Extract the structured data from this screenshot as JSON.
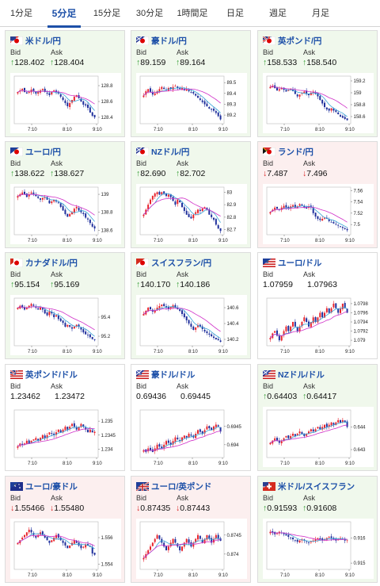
{
  "tabs": [
    {
      "label": "1分足",
      "active": false
    },
    {
      "label": "5分足",
      "active": true
    },
    {
      "label": "15分足",
      "active": false
    },
    {
      "label": "30分足",
      "active": false
    },
    {
      "label": "1時間足",
      "active": false
    },
    {
      "label": "日足",
      "active": false
    },
    {
      "label": "週足",
      "active": false
    },
    {
      "label": "月足",
      "active": false
    }
  ],
  "colors": {
    "accent": "#1d50a8",
    "up_bg": "#f0f8ec",
    "down_bg": "#fcefef",
    "up_arrow": "#2c9a2c",
    "down_arrow": "#d92020",
    "candle_up": "#e8242c",
    "candle_down": "#1f2f9c",
    "ma_short": "#36a3d6",
    "ma_long": "#d030c8"
  },
  "labels": {
    "bid": "Bid",
    "ask": "Ask"
  },
  "x_ticks": [
    "7:10",
    "8:10",
    "9:10"
  ],
  "cards": [
    {
      "pair": "米ドル/円",
      "flag": "us-jp",
      "trend": "up",
      "bid": "128.402",
      "ask": "128.404",
      "chart_data": {
        "type": "candlestick",
        "y_ticks": [
          "128.8",
          "128.6",
          "128.4"
        ],
        "ylim": [
          128.32,
          128.92
        ],
        "shape": [
          128.72,
          128.74,
          128.76,
          128.72,
          128.7,
          128.72,
          128.75,
          128.73,
          128.7,
          128.72,
          128.74,
          128.76,
          128.72,
          128.7,
          128.68,
          128.72,
          128.74,
          128.72,
          128.7,
          128.66,
          128.62,
          128.58,
          128.54,
          128.58,
          128.62,
          128.66,
          128.68,
          128.64,
          128.6,
          128.56,
          128.55,
          128.52,
          128.46,
          128.42,
          128.4
        ]
      }
    },
    {
      "pair": "豪ドル/円",
      "flag": "au-jp",
      "trend": "up",
      "bid": "89.159",
      "ask": "89.164",
      "chart_data": {
        "type": "candlestick",
        "y_ticks": [
          "89.5",
          "89.4",
          "89.3",
          "89.2"
        ],
        "ylim": [
          89.12,
          89.56
        ],
        "shape": [
          89.38,
          89.42,
          89.44,
          89.41,
          89.39,
          89.4,
          89.42,
          89.44,
          89.46,
          89.44,
          89.43,
          89.45,
          89.44,
          89.46,
          89.47,
          89.45,
          89.44,
          89.45,
          89.43,
          89.44,
          89.42,
          89.41,
          89.4,
          89.38,
          89.36,
          89.34,
          89.32,
          89.3,
          89.28,
          89.26,
          89.25,
          89.24,
          89.22,
          89.19,
          89.16
        ]
      }
    },
    {
      "pair": "英ポンド/円",
      "flag": "gb-jp",
      "trend": "up",
      "bid": "158.533",
      "ask": "158.540",
      "chart_data": {
        "type": "candlestick",
        "y_ticks": [
          "159.2",
          "159",
          "158.8",
          "158.6"
        ],
        "ylim": [
          158.48,
          159.28
        ],
        "shape": [
          159.1,
          159.12,
          159.08,
          159.04,
          159.06,
          159.08,
          159.05,
          159.02,
          159.04,
          159.06,
          159.03,
          158.98,
          158.94,
          158.97,
          159.0,
          159.02,
          158.99,
          158.96,
          159.0,
          159.02,
          158.98,
          158.94,
          158.88,
          158.82,
          158.76,
          158.72,
          158.7,
          158.74,
          158.7,
          158.68,
          158.64,
          158.6,
          158.58,
          158.56,
          158.54
        ]
      }
    },
    {
      "pair": "ユーロ/円",
      "flag": "eu-jp",
      "trend": "up",
      "bid": "138.622",
      "ask": "138.627",
      "chart_data": {
        "type": "candlestick",
        "y_ticks": [
          "139",
          "138.8",
          "138.6"
        ],
        "ylim": [
          138.55,
          139.08
        ],
        "shape": [
          138.98,
          139.0,
          139.02,
          139.0,
          138.97,
          139.0,
          139.02,
          139.0,
          138.98,
          138.96,
          138.94,
          138.96,
          138.97,
          138.94,
          138.9,
          138.92,
          138.94,
          138.92,
          138.9,
          138.86,
          138.82,
          138.78,
          138.75,
          138.78,
          138.8,
          138.84,
          138.86,
          138.82,
          138.8,
          138.78,
          138.74,
          138.72,
          138.68,
          138.64,
          138.62
        ]
      }
    },
    {
      "pair": "NZドル/円",
      "flag": "nz-jp",
      "trend": "up",
      "bid": "82.690",
      "ask": "82.702",
      "chart_data": {
        "type": "candlestick",
        "y_ticks": [
          "83",
          "82.9",
          "82.8",
          "82.7"
        ],
        "ylim": [
          82.66,
          83.04
        ],
        "shape": [
          82.82,
          82.86,
          82.9,
          82.94,
          82.97,
          82.99,
          83.0,
          82.98,
          83.0,
          82.99,
          82.97,
          82.98,
          82.96,
          82.93,
          82.9,
          82.94,
          82.92,
          82.88,
          82.85,
          82.82,
          82.8,
          82.79,
          82.82,
          82.84,
          82.86,
          82.85,
          82.87,
          82.88,
          82.86,
          82.82,
          82.8,
          82.78,
          82.74,
          82.71,
          82.69
        ]
      }
    },
    {
      "pair": "ランド/円",
      "flag": "za-jp",
      "trend": "down",
      "bid": "7.487",
      "ask": "7.496",
      "chart_data": {
        "type": "candlestick",
        "y_ticks": [
          "7.56",
          "7.54",
          "7.52",
          "7.5"
        ],
        "ylim": [
          7.482,
          7.566
        ],
        "shape": [
          7.522,
          7.526,
          7.53,
          7.528,
          7.526,
          7.53,
          7.533,
          7.53,
          7.528,
          7.532,
          7.534,
          7.53,
          7.532,
          7.536,
          7.534,
          7.53,
          7.528,
          7.532,
          7.53,
          7.52,
          7.514,
          7.51,
          7.508,
          7.51,
          7.512,
          7.51,
          7.506,
          7.504,
          7.502,
          7.5,
          7.498,
          7.496,
          7.494,
          7.492,
          7.49
        ]
      }
    },
    {
      "pair": "カナダドル/円",
      "flag": "ca-jp",
      "trend": "up",
      "bid": "95.154",
      "ask": "95.169",
      "chart_data": {
        "type": "candlestick",
        "y_ticks": [
          "95.4",
          "95.2"
        ],
        "ylim": [
          95.1,
          95.6
        ],
        "shape": [
          95.5,
          95.52,
          95.5,
          95.48,
          95.5,
          95.52,
          95.54,
          95.52,
          95.5,
          95.48,
          95.5,
          95.48,
          95.44,
          95.42,
          95.46,
          95.44,
          95.4,
          95.42,
          95.38,
          95.36,
          95.34,
          95.3,
          95.32,
          95.3,
          95.28,
          95.3,
          95.32,
          95.3,
          95.27,
          95.24,
          95.22,
          95.21,
          95.19,
          95.17,
          95.16
        ]
      }
    },
    {
      "pair": "スイスフラン/円",
      "flag": "ch-jp",
      "trend": "up",
      "bid": "140.170",
      "ask": "140.186",
      "chart_data": {
        "type": "candlestick",
        "y_ticks": [
          "140.6",
          "140.4",
          "140.2"
        ],
        "ylim": [
          140.12,
          140.72
        ],
        "shape": [
          140.52,
          140.56,
          140.6,
          140.58,
          140.55,
          140.57,
          140.6,
          140.62,
          140.64,
          140.62,
          140.6,
          140.58,
          140.61,
          140.63,
          140.6,
          140.58,
          140.56,
          140.52,
          140.48,
          140.44,
          140.4,
          140.36,
          140.32,
          140.35,
          140.38,
          140.36,
          140.33,
          140.3,
          140.28,
          140.26,
          140.24,
          140.22,
          140.2,
          140.19,
          140.17
        ]
      }
    },
    {
      "pair": "ユーロ/ドル",
      "flag": "eu-us",
      "trend": "flat",
      "bid": "1.07959",
      "ask": "1.07963",
      "chart_data": {
        "type": "candlestick",
        "y_ticks": [
          "1.0798",
          "1.0796",
          "1.0794",
          "1.0792",
          "1.079"
        ],
        "ylim": [
          1.07888,
          1.07992
        ],
        "shape": [
          1.07905,
          1.07915,
          1.0792,
          1.0791,
          1.079,
          1.0791,
          1.0792,
          1.0793,
          1.0792,
          1.0793,
          1.0794,
          1.0793,
          1.0792,
          1.0793,
          1.0794,
          1.0795,
          1.0794,
          1.0793,
          1.0794,
          1.0795,
          1.0794,
          1.0795,
          1.0796,
          1.0795,
          1.0796,
          1.0797,
          1.0796,
          1.0797,
          1.0798,
          1.0797,
          1.0796,
          1.0797,
          1.0798,
          1.0797,
          1.0796
        ]
      }
    },
    {
      "pair": "英ポンド/ドル",
      "flag": "gb-us",
      "trend": "flat",
      "bid": "1.23462",
      "ask": "1.23472",
      "chart_data": {
        "type": "candlestick",
        "y_ticks": [
          "1.235",
          "1.2345",
          "1.234"
        ],
        "ylim": [
          1.2337,
          1.2354
        ],
        "shape": [
          1.2341,
          1.2342,
          1.23415,
          1.2342,
          1.2343,
          1.2342,
          1.2343,
          1.23435,
          1.2344,
          1.2343,
          1.2344,
          1.2345,
          1.2344,
          1.2345,
          1.2346,
          1.23455,
          1.2345,
          1.2346,
          1.2347,
          1.2346,
          1.2347,
          1.2348,
          1.2347,
          1.2348,
          1.2349,
          1.2348,
          1.2347,
          1.2348,
          1.2349,
          1.2348,
          1.2347,
          1.2346,
          1.2347,
          1.2346,
          1.23462
        ]
      }
    },
    {
      "pair": "豪ドル/ドル",
      "flag": "au-us",
      "trend": "flat",
      "bid": "0.69436",
      "ask": "0.69445",
      "chart_data": {
        "type": "candlestick",
        "y_ticks": [
          "0.6945",
          "0.694"
        ],
        "ylim": [
          0.69365,
          0.69495
        ],
        "shape": [
          0.69385,
          0.6938,
          0.6939,
          0.69385,
          0.6938,
          0.6939,
          0.694,
          0.69395,
          0.6939,
          0.694,
          0.6941,
          0.69405,
          0.694,
          0.6941,
          0.6942,
          0.69415,
          0.6941,
          0.6942,
          0.69425,
          0.6942,
          0.6943,
          0.69425,
          0.6942,
          0.6943,
          0.6944,
          0.69435,
          0.6943,
          0.6944,
          0.6945,
          0.69445,
          0.6944,
          0.6945,
          0.69455,
          0.6945,
          0.69436
        ]
      }
    },
    {
      "pair": "NZドル/ドル",
      "flag": "nz-us",
      "trend": "up",
      "bid": "0.64403",
      "ask": "0.64417",
      "chart_data": {
        "type": "candlestick",
        "y_ticks": [
          "0.644",
          "0.643"
        ],
        "ylim": [
          0.64265,
          0.64475
        ],
        "shape": [
          0.6433,
          0.6434,
          0.6435,
          0.6434,
          0.6433,
          0.6434,
          0.6435,
          0.6436,
          0.6435,
          0.6436,
          0.6437,
          0.6436,
          0.6437,
          0.6438,
          0.6437,
          0.6436,
          0.6437,
          0.6438,
          0.6439,
          0.6438,
          0.6439,
          0.644,
          0.6439,
          0.644,
          0.6441,
          0.644,
          0.6441,
          0.6442,
          0.6441,
          0.6442,
          0.6443,
          0.6442,
          0.6443,
          0.6442,
          0.644
        ]
      }
    },
    {
      "pair": "ユーロ/豪ドル",
      "flag": "eu-au",
      "trend": "down",
      "bid": "1.55466",
      "ask": "1.55480",
      "chart_data": {
        "type": "candlestick",
        "y_ticks": [
          "1.556",
          "1.554"
        ],
        "ylim": [
          1.5536,
          1.5572
        ],
        "shape": [
          1.5556,
          1.5558,
          1.556,
          1.5562,
          1.5564,
          1.5566,
          1.5564,
          1.5562,
          1.556,
          1.5562,
          1.5564,
          1.5562,
          1.556,
          1.5558,
          1.5556,
          1.5558,
          1.556,
          1.5562,
          1.556,
          1.5558,
          1.5556,
          1.5554,
          1.5552,
          1.5554,
          1.5556,
          1.5558,
          1.5556,
          1.5554,
          1.5552,
          1.5553,
          1.5555,
          1.5554,
          1.5553,
          1.5548,
          1.5547
        ]
      }
    },
    {
      "pair": "ユーロ/英ポンド",
      "flag": "eu-gb",
      "trend": "down",
      "bid": "0.87435",
      "ask": "0.87443",
      "chart_data": {
        "type": "candlestick",
        "y_ticks": [
          "0.8745",
          "0.874"
        ],
        "ylim": [
          0.8736,
          0.87485
        ],
        "shape": [
          0.8739,
          0.874,
          0.8741,
          0.8742,
          0.8743,
          0.8744,
          0.8745,
          0.8744,
          0.8743,
          0.8742,
          0.8741,
          0.8742,
          0.8743,
          0.8744,
          0.8743,
          0.8742,
          0.8741,
          0.8742,
          0.8743,
          0.8744,
          0.8743,
          0.8742,
          0.8743,
          0.8744,
          0.8745,
          0.8744,
          0.8743,
          0.8744,
          0.8745,
          0.8744,
          0.8743,
          0.8744,
          0.8745,
          0.8744,
          0.87435
        ]
      }
    },
    {
      "pair": "米ドル/スイスフラン",
      "flag": "us-ch",
      "trend": "up",
      "bid": "0.91593",
      "ask": "0.91608",
      "chart_data": {
        "type": "candlestick",
        "y_ticks": [
          "0.916",
          "0.915"
        ],
        "ylim": [
          0.91475,
          0.91665
        ],
        "shape": [
          0.91625,
          0.9162,
          0.91615,
          0.9162,
          0.91625,
          0.9162,
          0.91615,
          0.9161,
          0.91605,
          0.916,
          0.91595,
          0.9159,
          0.91585,
          0.9159,
          0.91595,
          0.9159,
          0.91585,
          0.9158,
          0.91585,
          0.9159,
          0.91595,
          0.916,
          0.91595,
          0.9159,
          0.91595,
          0.916,
          0.91605,
          0.916,
          0.91595,
          0.9159,
          0.91595,
          0.916,
          0.91595,
          0.9159,
          0.91593
        ]
      }
    }
  ]
}
